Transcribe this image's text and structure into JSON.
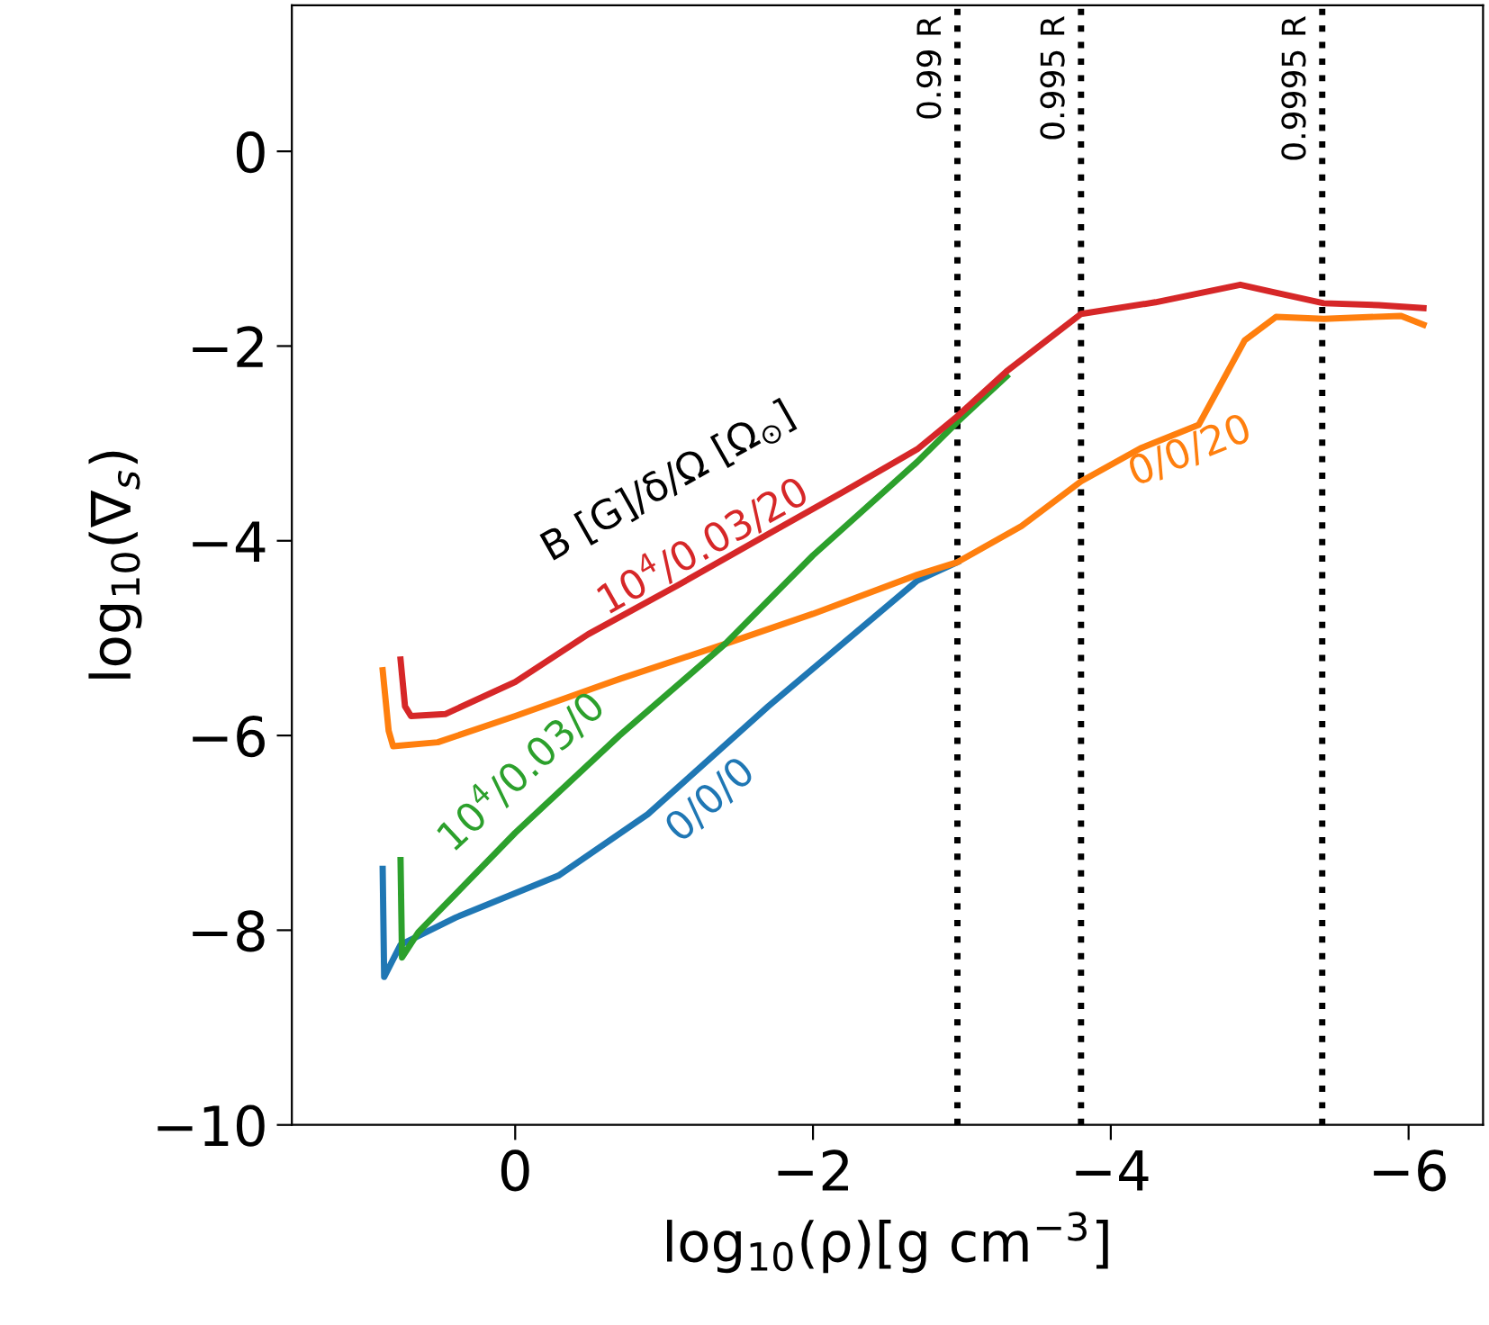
{
  "chart_data": {
    "type": "line",
    "xlabel": "log$_{10}$(ρ)[g cm$^{−3}$]",
    "ylabel": "log$_{10}$(∇$_{s}$)",
    "xlim": [
      1.5,
      -6.5
    ],
    "ylim": [
      -10,
      1.5
    ],
    "xticks": [
      {
        "value": 0,
        "label": "0"
      },
      {
        "value": -2,
        "label": "−2"
      },
      {
        "value": -4,
        "label": "−4"
      },
      {
        "value": -6,
        "label": "−6"
      }
    ],
    "yticks": [
      {
        "value": 0,
        "label": "0"
      },
      {
        "value": -2,
        "label": "−2"
      },
      {
        "value": -4,
        "label": "−4"
      },
      {
        "value": -6,
        "label": "−6"
      },
      {
        "value": -8,
        "label": "−8"
      },
      {
        "value": -10,
        "label": "−10"
      }
    ],
    "grid": false,
    "legend": false,
    "marker": "none",
    "line_style": "solid",
    "annotations": [
      "B [G]/δ/Ω [Ω$_{⊙}$]"
    ],
    "ref_lines": [
      {
        "axis": "x",
        "value": -2.97,
        "label": "0.99 R",
        "color": "#000000",
        "line_style": "dotted"
      },
      {
        "axis": "x",
        "value": -3.8,
        "label": "0.995 R",
        "color": "#000000",
        "line_style": "dotted"
      },
      {
        "axis": "x",
        "value": -5.42,
        "label": "0.9995 R",
        "color": "#000000",
        "line_style": "dotted"
      }
    ],
    "series": [
      {
        "name": "0/0/0",
        "color": "#1f77b4",
        "x": [
          0.89,
          0.88,
          0.77,
          0.4,
          -0.29,
          -0.89,
          -1.7,
          -2.7,
          -2.97
        ],
        "values": [
          -7.37,
          -8.48,
          -8.15,
          -7.87,
          -7.44,
          -6.81,
          -5.7,
          -4.41,
          -4.22
        ]
      },
      {
        "name": "0/0/20",
        "color": "#ff7f0e",
        "x": [
          0.89,
          0.85,
          0.82,
          0.52,
          0,
          -0.7,
          -1.41,
          -2.0,
          -2.7,
          -2.97,
          -3.4,
          -3.8,
          -4.2,
          -4.59,
          -4.9,
          -5.11,
          -5.43,
          -5.95,
          -6.1
        ],
        "values": [
          -5.33,
          -5.95,
          -6.11,
          -6.07,
          -5.8,
          -5.42,
          -5.06,
          -4.75,
          -4.35,
          -4.22,
          -3.85,
          -3.39,
          -3.05,
          -2.81,
          -1.94,
          -1.7,
          -1.72,
          -1.69,
          -1.78
        ]
      },
      {
        "name": "10$^{4}$/0.03/0",
        "color": "#2ca02c",
        "x": [
          0.77,
          0.76,
          0.65,
          0.0,
          -0.7,
          -1.41,
          -2.0,
          -2.7,
          -2.97,
          -3.3
        ],
        "values": [
          -7.28,
          -8.28,
          -8.02,
          -7.0,
          -6.0,
          -5.06,
          -4.15,
          -3.19,
          -2.78,
          -2.31
        ]
      },
      {
        "name": "10$^{4}$/0.03/20",
        "color": "#d62728",
        "x": [
          0.77,
          0.74,
          0.7,
          0.47,
          0,
          -0.49,
          -1.1,
          -1.7,
          -2.2,
          -2.7,
          -2.97,
          -3.3,
          -3.8,
          -4.3,
          -4.87,
          -5.1,
          -5.43,
          -5.8,
          -6.1
        ],
        "values": [
          -5.22,
          -5.7,
          -5.8,
          -5.78,
          -5.45,
          -4.96,
          -4.45,
          -3.93,
          -3.5,
          -3.06,
          -2.72,
          -2.26,
          -1.67,
          -1.55,
          -1.37,
          -1.45,
          -1.56,
          -1.58,
          -1.61
        ]
      }
    ]
  }
}
